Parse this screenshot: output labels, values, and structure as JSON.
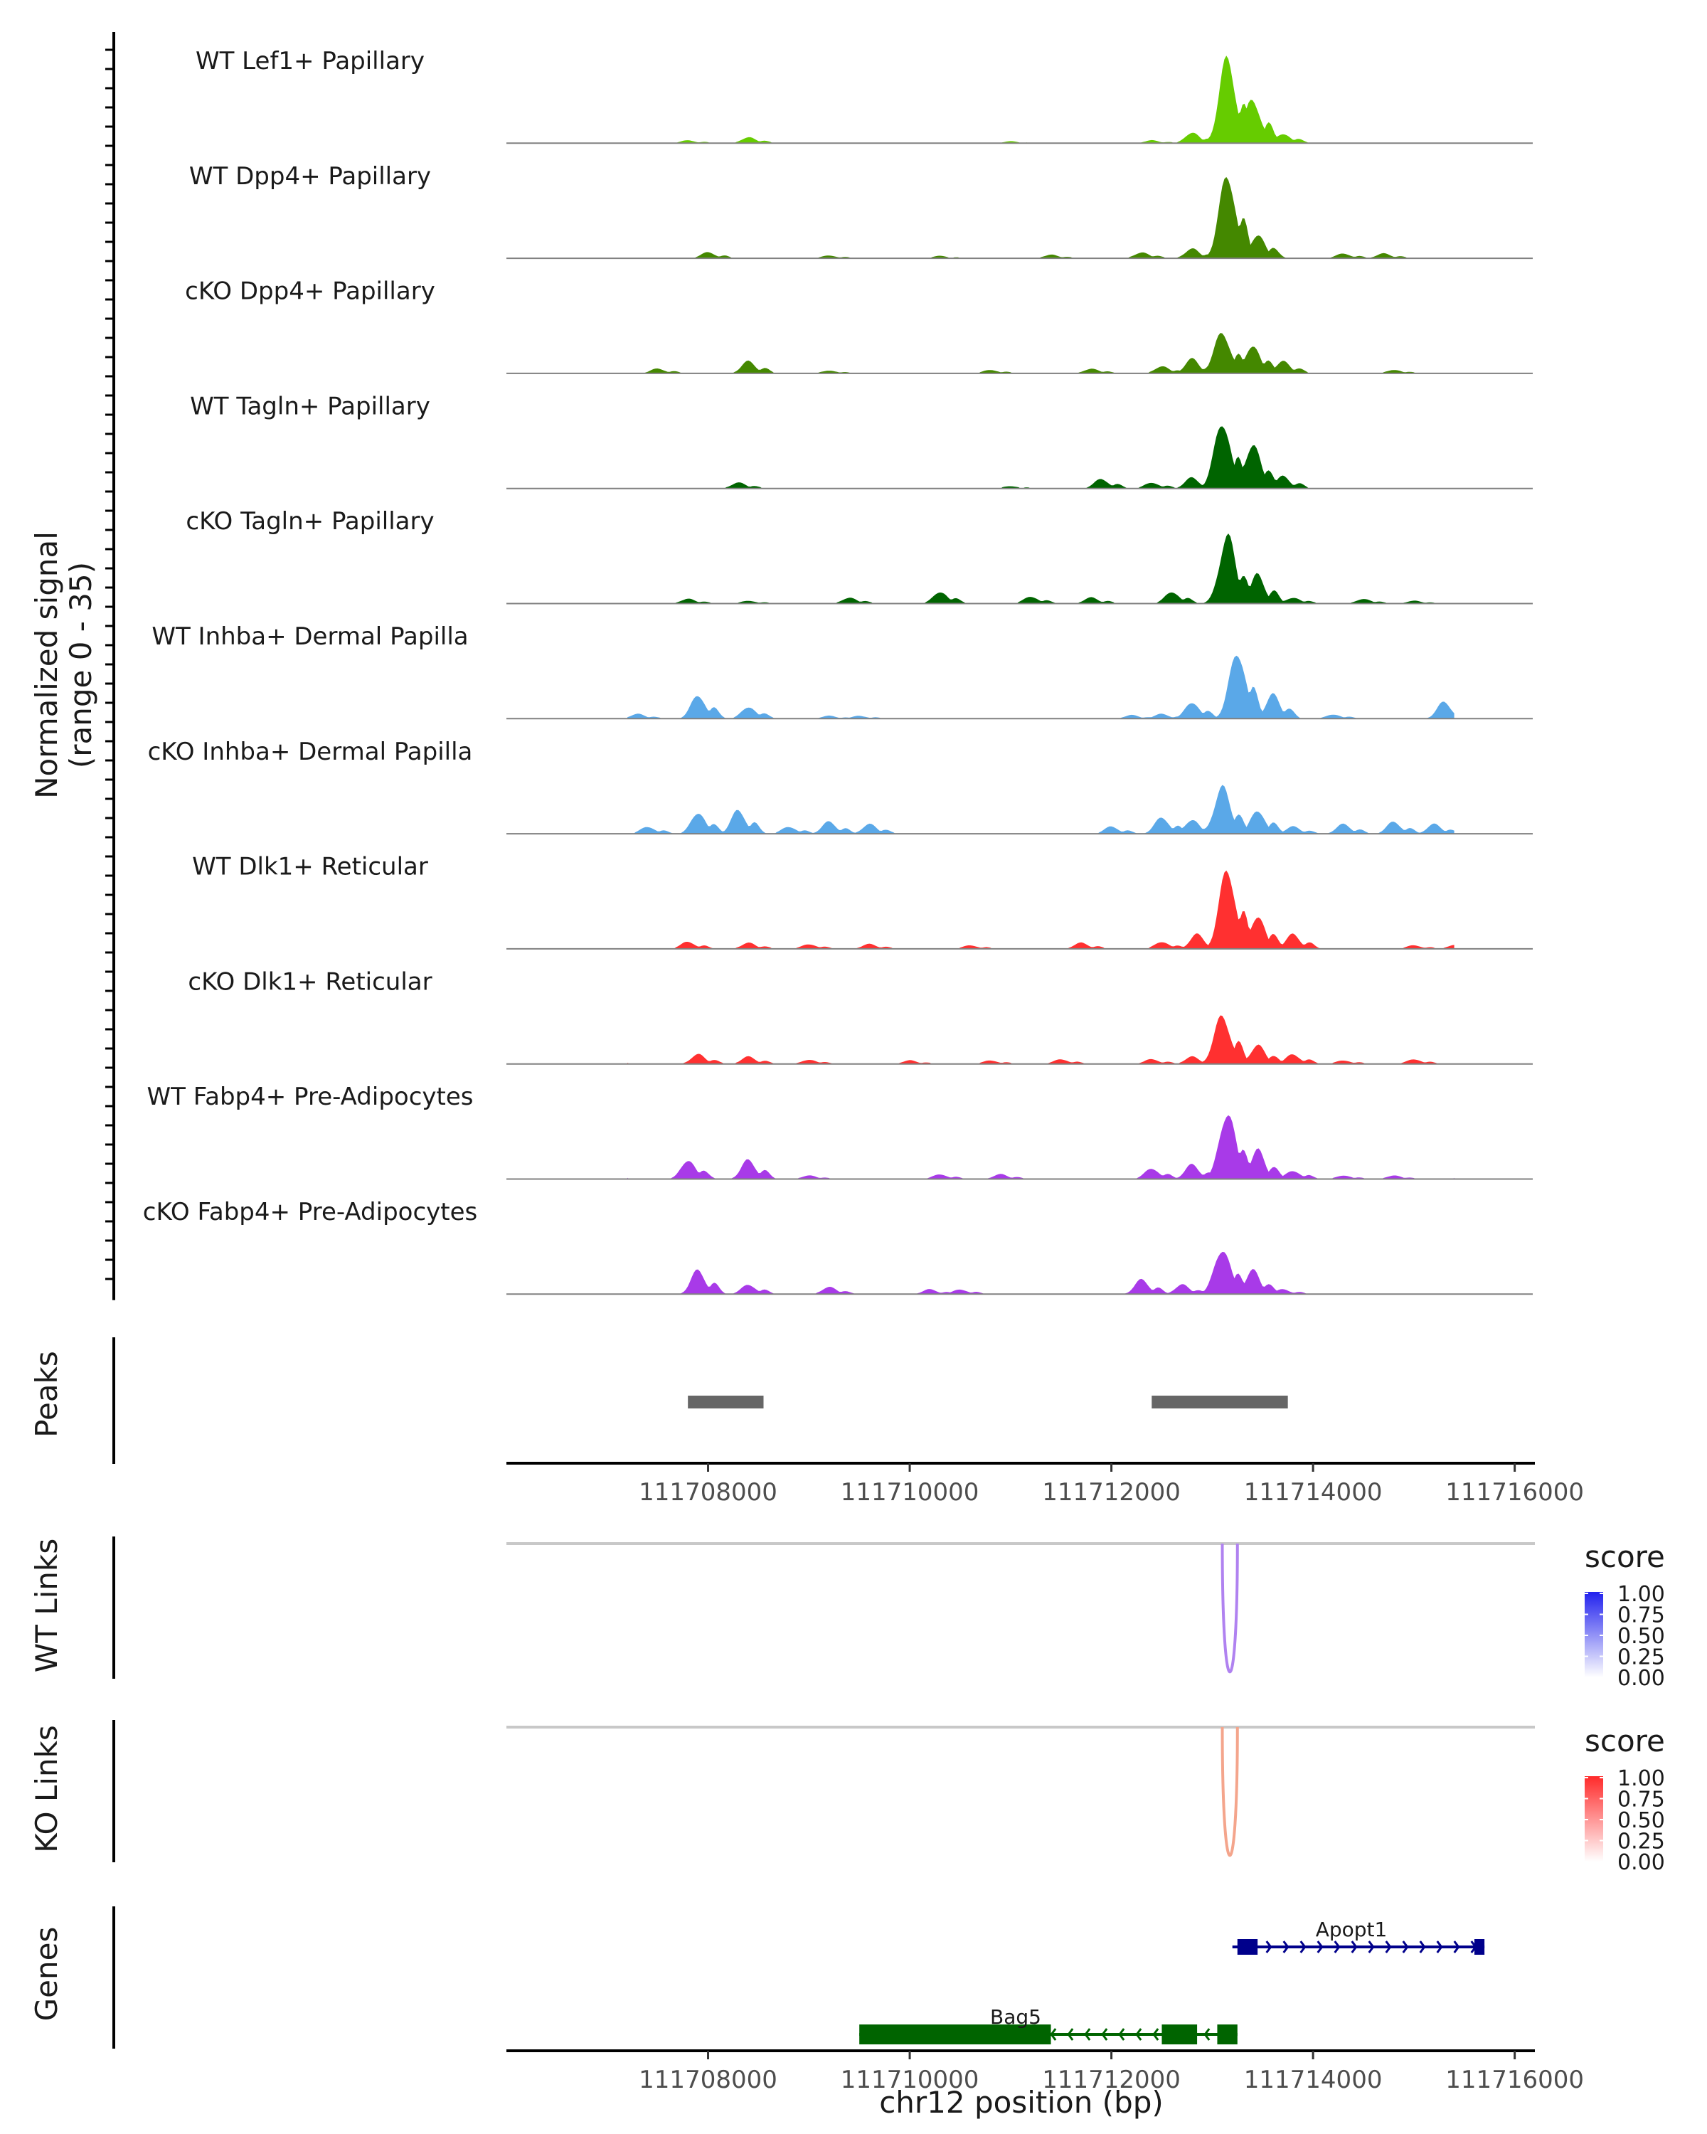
{
  "chart_data": {
    "type": "area",
    "title": "",
    "chromosome": "chr12",
    "xlabel": "chr12 position (bp)",
    "xlim": [
      111706000,
      111716200
    ],
    "xticks": [
      111708000,
      111710000,
      111712000,
      111714000,
      111716000
    ],
    "xtick_labels": [
      "111708000",
      "111710000",
      "111712000",
      "111714000",
      "111716000"
    ],
    "coverage": {
      "ylabel_line1": "Normalized signal",
      "ylabel_line2": "(range 0 - 35)",
      "ylim": [
        0,
        35
      ],
      "tracks": [
        {
          "name": "WT Lef1+ Papillary",
          "color": "#66cc00",
          "peaks": [
            [
              111707800,
              1.2
            ],
            [
              111708400,
              2.5
            ],
            [
              111711000,
              0.8
            ],
            [
              111712400,
              1.2
            ],
            [
              111712800,
              4.5
            ],
            [
              111713150,
              35
            ],
            [
              111713400,
              18
            ],
            [
              111713700,
              4
            ]
          ]
        },
        {
          "name": "WT Dpp4+ Papillary",
          "color": "#448800",
          "peaks": [
            [
              111708000,
              2.5
            ],
            [
              111709200,
              1.2
            ],
            [
              111710300,
              1
            ],
            [
              111711400,
              1.5
            ],
            [
              111712300,
              2.5
            ],
            [
              111712800,
              4
            ],
            [
              111713150,
              35
            ],
            [
              111713450,
              10
            ],
            [
              111714300,
              2
            ],
            [
              111714700,
              2
            ]
          ]
        },
        {
          "name": "cKO Dpp4+ Papillary",
          "color": "#448800",
          "peaks": [
            [
              111706500,
              1.2
            ],
            [
              111707500,
              2
            ],
            [
              111708400,
              5
            ],
            [
              111709200,
              1.2
            ],
            [
              111710800,
              1.5
            ],
            [
              111711800,
              2
            ],
            [
              111712500,
              3
            ],
            [
              111712800,
              6
            ],
            [
              111713100,
              17
            ],
            [
              111713400,
              12
            ],
            [
              111713700,
              5
            ],
            [
              111714800,
              1.5
            ]
          ]
        },
        {
          "name": "WT Tagln+ Papillary",
          "color": "#006400",
          "peaks": [
            [
              111708300,
              2.5
            ],
            [
              111711000,
              1
            ],
            [
              111711900,
              4
            ],
            [
              111712400,
              2.5
            ],
            [
              111712800,
              4.5
            ],
            [
              111713100,
              28
            ],
            [
              111713400,
              18
            ],
            [
              111713700,
              5
            ]
          ]
        },
        {
          "name": "cKO Tagln+ Papillary",
          "color": "#006400",
          "peaks": [
            [
              111707800,
              2
            ],
            [
              111708400,
              1.2
            ],
            [
              111709400,
              2.5
            ],
            [
              111710300,
              5
            ],
            [
              111711200,
              3
            ],
            [
              111711800,
              2.5
            ],
            [
              111712600,
              5
            ],
            [
              111713150,
              28
            ],
            [
              111713450,
              12
            ],
            [
              111713800,
              2.5
            ],
            [
              111714500,
              2
            ],
            [
              111715000,
              1.2
            ]
          ]
        },
        {
          "name": "WT Inhba+ Dermal Papilla",
          "color": "#5aa8e8",
          "peaks": [
            [
              111707300,
              2
            ],
            [
              111707900,
              10
            ],
            [
              111708400,
              5
            ],
            [
              111709200,
              1.2
            ],
            [
              111709500,
              1.2
            ],
            [
              111712200,
              1.5
            ],
            [
              111712500,
              2
            ],
            [
              111712800,
              7
            ],
            [
              111713250,
              28
            ],
            [
              111713600,
              10
            ],
            [
              111714200,
              1.8
            ],
            [
              111715300,
              7
            ]
          ]
        },
        {
          "name": "cKO Inhba+ Dermal Papilla",
          "color": "#5aa8e8",
          "peaks": [
            [
              111707400,
              3
            ],
            [
              111707900,
              9
            ],
            [
              111708300,
              10
            ],
            [
              111708800,
              3
            ],
            [
              111709200,
              5
            ],
            [
              111709600,
              4
            ],
            [
              111712000,
              3
            ],
            [
              111712500,
              7
            ],
            [
              111712800,
              6
            ],
            [
              111713100,
              19
            ],
            [
              111713450,
              10
            ],
            [
              111713800,
              3
            ],
            [
              111714300,
              4
            ],
            [
              111714800,
              5
            ],
            [
              111715200,
              4
            ]
          ]
        },
        {
          "name": "WT Dlk1+ Reticular",
          "color": "#ff3030",
          "peaks": [
            [
              111706500,
              1.5
            ],
            [
              111707800,
              3
            ],
            [
              111708400,
              2.5
            ],
            [
              111709000,
              2
            ],
            [
              111709600,
              2
            ],
            [
              111710600,
              1.5
            ],
            [
              111711700,
              2.5
            ],
            [
              111712500,
              3
            ],
            [
              111712850,
              6
            ],
            [
              111713150,
              33
            ],
            [
              111713450,
              14
            ],
            [
              111713800,
              6
            ],
            [
              111715000,
              1.5
            ],
            [
              111715400,
              1.5
            ]
          ]
        },
        {
          "name": "cKO Dlk1+ Reticular",
          "color": "#ff3030",
          "peaks": [
            [
              111706500,
              1.5
            ],
            [
              111707000,
              1.5
            ],
            [
              111707900,
              4
            ],
            [
              111708400,
              3
            ],
            [
              111709000,
              1.8
            ],
            [
              111710000,
              1.5
            ],
            [
              111710800,
              1.5
            ],
            [
              111711500,
              2
            ],
            [
              111712400,
              2
            ],
            [
              111712800,
              3
            ],
            [
              111713100,
              20
            ],
            [
              111713450,
              8
            ],
            [
              111713800,
              4
            ],
            [
              111714300,
              1.5
            ],
            [
              111715000,
              2
            ]
          ]
        },
        {
          "name": "WT Fabp4+ Pre-Adipocytes",
          "color": "#a83ae8",
          "peaks": [
            [
              111707000,
              1.5
            ],
            [
              111707800,
              8
            ],
            [
              111708400,
              8
            ],
            [
              111709000,
              1.5
            ],
            [
              111710300,
              2
            ],
            [
              111710900,
              2
            ],
            [
              111712400,
              4.5
            ],
            [
              111712800,
              6
            ],
            [
              111713150,
              28
            ],
            [
              111713450,
              12
            ],
            [
              111713800,
              3.5
            ],
            [
              111714300,
              1.5
            ],
            [
              111714800,
              1.5
            ],
            [
              111715500,
              1.5
            ]
          ]
        },
        {
          "name": "cKO Fabp4+ Pre-Adipocytes",
          "color": "#a83ae8",
          "peaks": [
            [
              111706700,
              3
            ],
            [
              111707900,
              10
            ],
            [
              111708400,
              4
            ],
            [
              111709200,
              3
            ],
            [
              111710200,
              2
            ],
            [
              111710500,
              2
            ],
            [
              111712300,
              6
            ],
            [
              111712700,
              4
            ],
            [
              111713100,
              19
            ],
            [
              111713400,
              10
            ],
            [
              111713700,
              2
            ]
          ]
        }
      ]
    },
    "peaks_track": {
      "label": "Peaks",
      "regions": [
        [
          111707800,
          111708550
        ],
        [
          111712400,
          111713750
        ]
      ]
    },
    "links": [
      {
        "label": "WT Links",
        "color": "#b082f0",
        "from": 111713100,
        "to": 111713250,
        "score": 0.5,
        "legend_title": "score",
        "legend_ticks": [
          "1.00",
          "0.75",
          "0.50",
          "0.25",
          "0.00"
        ],
        "gradient": [
          "#2222ee",
          "#ffffff"
        ]
      },
      {
        "label": "KO Links",
        "color": "#f4a58c",
        "from": 111713100,
        "to": 111713250,
        "score": 0.5,
        "legend_title": "score",
        "legend_ticks": [
          "1.00",
          "0.75",
          "0.50",
          "0.25",
          "0.00"
        ],
        "gradient": [
          "#ff2a2a",
          "#ffffff"
        ]
      }
    ],
    "genes": {
      "label": "Genes",
      "items": [
        {
          "name": "Apopt1",
          "strand": "+",
          "start": 111713200,
          "end": 111715700,
          "color": "#00008b",
          "exons": [
            [
              111713250,
              111713450
            ],
            [
              111715600,
              111715700
            ]
          ]
        },
        {
          "name": "Bag5",
          "strand": "-",
          "start": 111709500,
          "end": 111713250,
          "color": "#006400",
          "exons": [
            [
              111709500,
              111711400
            ],
            [
              111712500,
              111712850
            ],
            [
              111713050,
              111713250
            ]
          ]
        }
      ]
    }
  }
}
